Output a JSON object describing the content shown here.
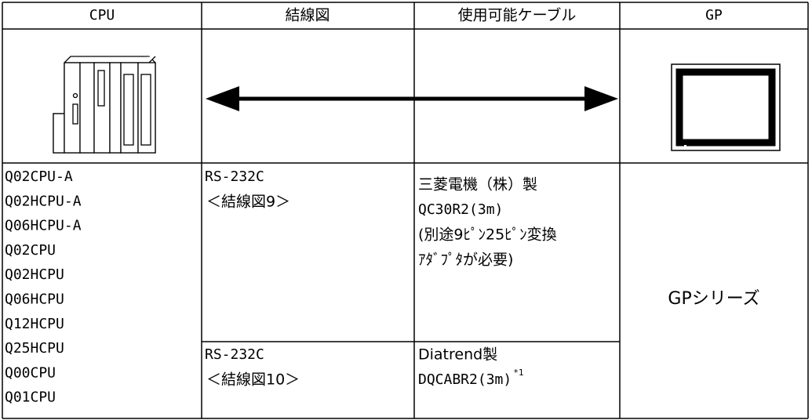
{
  "table": {
    "headers": [
      "CPU",
      "結線図",
      "使用可能ケーブル",
      "GP"
    ],
    "cpus": [
      "Q02CPU-A",
      "Q02HCPU-A",
      "Q06HCPU-A",
      "Q02CPU",
      "Q02HCPU",
      "Q06HCPU",
      "Q12HCPU",
      "Q25HCPU",
      "Q00CPU",
      "Q01CPU"
    ],
    "connections": [
      {
        "interface": "RS-232C",
        "diagram": "＜結線図9＞",
        "cable": [
          "三菱電機（株）製",
          "QC30R2(3m)",
          "(別途9ﾋﾟﾝ25ﾋﾟﾝ変換",
          "ｱﾀﾞﾌﾟﾀが必要)"
        ]
      },
      {
        "interface": "RS-232C",
        "diagram": "＜結線図10＞",
        "cable": [
          "Diatrend製",
          "DQCABR2(3m)"
        ],
        "note": "*1"
      }
    ],
    "gp": "GPシリーズ"
  }
}
